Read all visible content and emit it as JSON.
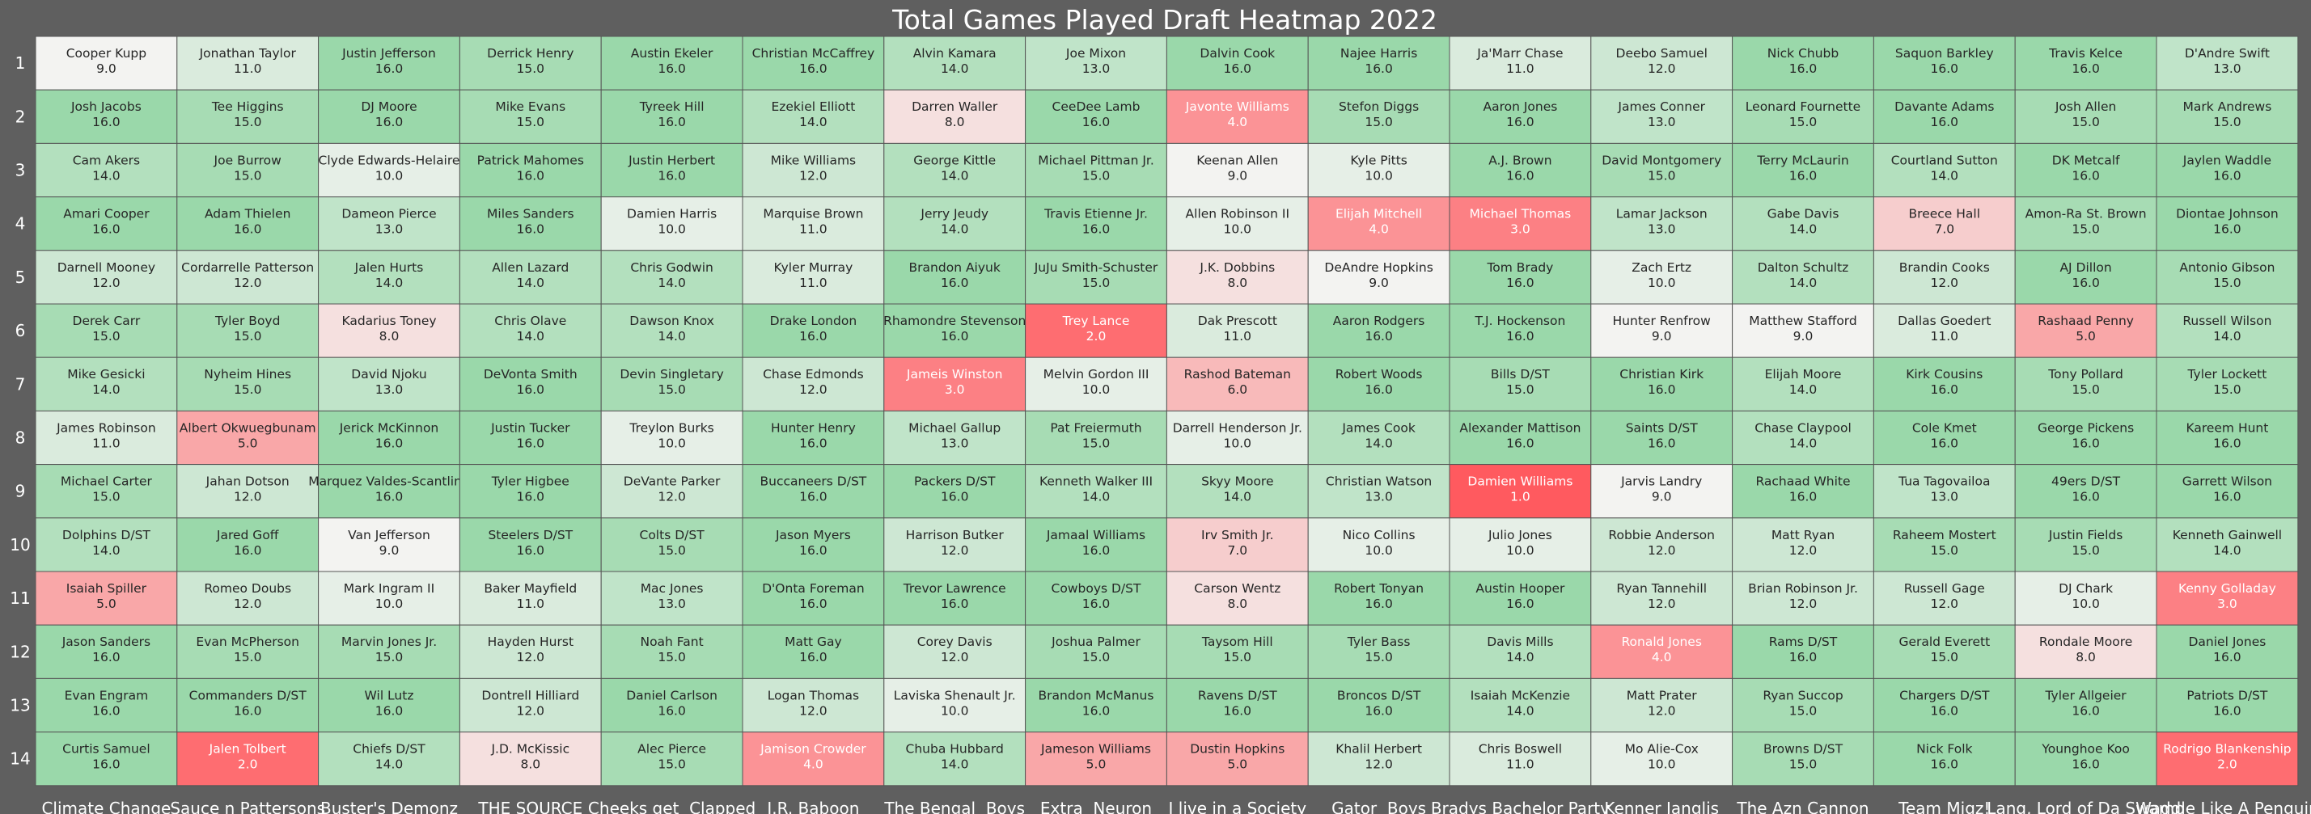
{
  "chart_data": {
    "type": "heatmap",
    "title": "Total Games Played Draft Heatmap 2022",
    "rows": [
      "1",
      "2",
      "3",
      "4",
      "5",
      "6",
      "7",
      "8",
      "9",
      "10",
      "11",
      "12",
      "13",
      "14"
    ],
    "columns": [
      "Climate Change",
      "Sauce n Pattersons",
      "Buster's Demonz",
      "THE SOURCE",
      "Cheeks get  Clapped",
      "I.R. Baboon",
      "The Bengal  Boys",
      "Extra  Neuron",
      "I live in a Society",
      "Gator  Boys",
      "Bradys Bachelor Party",
      "Kenner Janglis",
      "The Azn Cannon",
      "Team Migz!",
      "Lang, Lord of Da Swamp",
      "Waddle Like A Penguin"
    ],
    "vmin": 1,
    "vmax": 17,
    "colormap": {
      "low": "#ff5a5f",
      "mid": "#f3f3f1",
      "high": "#8dd4a0"
    },
    "cells": [
      [
        {
          "player": "Cooper Kupp",
          "value": 9.0
        },
        {
          "player": "Jonathan Taylor",
          "value": 11.0
        },
        {
          "player": "Justin Jefferson",
          "value": 16.0
        },
        {
          "player": "Derrick Henry",
          "value": 15.0
        },
        {
          "player": "Austin Ekeler",
          "value": 16.0
        },
        {
          "player": "Christian McCaffrey",
          "value": 16.0
        },
        {
          "player": "Alvin Kamara",
          "value": 14.0
        },
        {
          "player": "Joe Mixon",
          "value": 13.0
        },
        {
          "player": "Dalvin Cook",
          "value": 16.0
        },
        {
          "player": "Najee Harris",
          "value": 16.0
        },
        {
          "player": "Ja'Marr Chase",
          "value": 11.0
        },
        {
          "player": "Deebo Samuel",
          "value": 12.0
        },
        {
          "player": "Nick Chubb",
          "value": 16.0
        },
        {
          "player": "Saquon Barkley",
          "value": 16.0
        },
        {
          "player": "Travis Kelce",
          "value": 16.0
        },
        {
          "player": "D'Andre Swift",
          "value": 13.0
        }
      ],
      [
        {
          "player": "Josh Jacobs",
          "value": 16.0
        },
        {
          "player": "Tee Higgins",
          "value": 15.0
        },
        {
          "player": "DJ Moore",
          "value": 16.0
        },
        {
          "player": "Mike Evans",
          "value": 15.0
        },
        {
          "player": "Tyreek Hill",
          "value": 16.0
        },
        {
          "player": "Ezekiel Elliott",
          "value": 14.0
        },
        {
          "player": "Darren Waller",
          "value": 8.0
        },
        {
          "player": "CeeDee Lamb",
          "value": 16.0
        },
        {
          "player": "Javonte Williams",
          "value": 4.0
        },
        {
          "player": "Stefon Diggs",
          "value": 15.0
        },
        {
          "player": "Aaron Jones",
          "value": 16.0
        },
        {
          "player": "James Conner",
          "value": 13.0
        },
        {
          "player": "Leonard Fournette",
          "value": 15.0
        },
        {
          "player": "Davante Adams",
          "value": 16.0
        },
        {
          "player": "Josh Allen",
          "value": 15.0
        },
        {
          "player": "Mark Andrews",
          "value": 15.0
        }
      ],
      [
        {
          "player": "Cam Akers",
          "value": 14.0
        },
        {
          "player": "Joe Burrow",
          "value": 15.0
        },
        {
          "player": "Clyde Edwards-Helaire",
          "value": 10.0
        },
        {
          "player": "Patrick Mahomes",
          "value": 16.0
        },
        {
          "player": "Justin Herbert",
          "value": 16.0
        },
        {
          "player": "Mike Williams",
          "value": 12.0
        },
        {
          "player": "George Kittle",
          "value": 14.0
        },
        {
          "player": "Michael Pittman Jr.",
          "value": 15.0
        },
        {
          "player": "Keenan Allen",
          "value": 9.0
        },
        {
          "player": "Kyle Pitts",
          "value": 10.0
        },
        {
          "player": "A.J. Brown",
          "value": 16.0
        },
        {
          "player": "David Montgomery",
          "value": 15.0
        },
        {
          "player": "Terry McLaurin",
          "value": 16.0
        },
        {
          "player": "Courtland Sutton",
          "value": 14.0
        },
        {
          "player": "DK Metcalf",
          "value": 16.0
        },
        {
          "player": "Jaylen Waddle",
          "value": 16.0
        }
      ],
      [
        {
          "player": "Amari Cooper",
          "value": 16.0
        },
        {
          "player": "Adam Thielen",
          "value": 16.0
        },
        {
          "player": "Dameon Pierce",
          "value": 13.0
        },
        {
          "player": "Miles Sanders",
          "value": 16.0
        },
        {
          "player": "Damien Harris",
          "value": 10.0
        },
        {
          "player": "Marquise Brown",
          "value": 11.0
        },
        {
          "player": "Jerry Jeudy",
          "value": 14.0
        },
        {
          "player": "Travis Etienne Jr.",
          "value": 16.0
        },
        {
          "player": "Allen Robinson II",
          "value": 10.0
        },
        {
          "player": "Elijah Mitchell",
          "value": 4.0
        },
        {
          "player": "Michael Thomas",
          "value": 3.0
        },
        {
          "player": "Lamar Jackson",
          "value": 13.0
        },
        {
          "player": "Gabe Davis",
          "value": 14.0
        },
        {
          "player": "Breece Hall",
          "value": 7.0
        },
        {
          "player": "Amon-Ra St. Brown",
          "value": 15.0
        },
        {
          "player": "Diontae Johnson",
          "value": 16.0
        }
      ],
      [
        {
          "player": "Darnell Mooney",
          "value": 12.0
        },
        {
          "player": "Cordarrelle Patterson",
          "value": 12.0
        },
        {
          "player": "Jalen Hurts",
          "value": 14.0
        },
        {
          "player": "Allen Lazard",
          "value": 14.0
        },
        {
          "player": "Chris Godwin",
          "value": 14.0
        },
        {
          "player": "Kyler Murray",
          "value": 11.0
        },
        {
          "player": "Brandon Aiyuk",
          "value": 16.0
        },
        {
          "player": "JuJu Smith-Schuster",
          "value": 15.0
        },
        {
          "player": "J.K. Dobbins",
          "value": 8.0
        },
        {
          "player": "DeAndre Hopkins",
          "value": 9.0
        },
        {
          "player": "Tom Brady",
          "value": 16.0
        },
        {
          "player": "Zach Ertz",
          "value": 10.0
        },
        {
          "player": "Dalton Schultz",
          "value": 14.0
        },
        {
          "player": "Brandin Cooks",
          "value": 12.0
        },
        {
          "player": "AJ Dillon",
          "value": 16.0
        },
        {
          "player": "Antonio Gibson",
          "value": 15.0
        }
      ],
      [
        {
          "player": "Derek Carr",
          "value": 15.0
        },
        {
          "player": "Tyler Boyd",
          "value": 15.0
        },
        {
          "player": "Kadarius Toney",
          "value": 8.0
        },
        {
          "player": "Chris Olave",
          "value": 14.0
        },
        {
          "player": "Dawson Knox",
          "value": 14.0
        },
        {
          "player": "Drake London",
          "value": 16.0
        },
        {
          "player": "Rhamondre Stevenson",
          "value": 16.0
        },
        {
          "player": "Trey Lance",
          "value": 2.0
        },
        {
          "player": "Dak Prescott",
          "value": 11.0
        },
        {
          "player": "Aaron Rodgers",
          "value": 16.0
        },
        {
          "player": "T.J. Hockenson",
          "value": 16.0
        },
        {
          "player": "Hunter Renfrow",
          "value": 9.0
        },
        {
          "player": "Matthew Stafford",
          "value": 9.0
        },
        {
          "player": "Dallas Goedert",
          "value": 11.0
        },
        {
          "player": "Rashaad Penny",
          "value": 5.0
        },
        {
          "player": "Russell Wilson",
          "value": 14.0
        }
      ],
      [
        {
          "player": "Mike Gesicki",
          "value": 14.0
        },
        {
          "player": "Nyheim Hines",
          "value": 15.0
        },
        {
          "player": "David Njoku",
          "value": 13.0
        },
        {
          "player": "DeVonta Smith",
          "value": 16.0
        },
        {
          "player": "Devin Singletary",
          "value": 15.0
        },
        {
          "player": "Chase Edmonds",
          "value": 12.0
        },
        {
          "player": "Jameis Winston",
          "value": 3.0
        },
        {
          "player": "Melvin Gordon III",
          "value": 10.0
        },
        {
          "player": "Rashod Bateman",
          "value": 6.0
        },
        {
          "player": "Robert Woods",
          "value": 16.0
        },
        {
          "player": "Bills D/ST",
          "value": 15.0
        },
        {
          "player": "Christian Kirk",
          "value": 16.0
        },
        {
          "player": "Elijah Moore",
          "value": 14.0
        },
        {
          "player": "Kirk Cousins",
          "value": 16.0
        },
        {
          "player": "Tony Pollard",
          "value": 15.0
        },
        {
          "player": "Tyler Lockett",
          "value": 15.0
        }
      ],
      [
        {
          "player": "James Robinson",
          "value": 11.0
        },
        {
          "player": "Albert Okwuegbunam",
          "value": 5.0
        },
        {
          "player": "Jerick McKinnon",
          "value": 16.0
        },
        {
          "player": "Justin Tucker",
          "value": 16.0
        },
        {
          "player": "Treylon Burks",
          "value": 10.0
        },
        {
          "player": "Hunter Henry",
          "value": 16.0
        },
        {
          "player": "Michael Gallup",
          "value": 13.0
        },
        {
          "player": "Pat Freiermuth",
          "value": 15.0
        },
        {
          "player": "Darrell Henderson Jr.",
          "value": 10.0
        },
        {
          "player": "James Cook",
          "value": 14.0
        },
        {
          "player": "Alexander Mattison",
          "value": 16.0
        },
        {
          "player": "Saints D/ST",
          "value": 16.0
        },
        {
          "player": "Chase Claypool",
          "value": 14.0
        },
        {
          "player": "Cole Kmet",
          "value": 16.0
        },
        {
          "player": "George Pickens",
          "value": 16.0
        },
        {
          "player": "Kareem Hunt",
          "value": 16.0
        }
      ],
      [
        {
          "player": "Michael Carter",
          "value": 15.0
        },
        {
          "player": "Jahan Dotson",
          "value": 12.0
        },
        {
          "player": "Marquez Valdes-Scantling",
          "value": 16.0
        },
        {
          "player": "Tyler Higbee",
          "value": 16.0
        },
        {
          "player": "DeVante Parker",
          "value": 12.0
        },
        {
          "player": "Buccaneers D/ST",
          "value": 16.0
        },
        {
          "player": "Packers D/ST",
          "value": 16.0
        },
        {
          "player": "Kenneth Walker III",
          "value": 14.0
        },
        {
          "player": "Skyy Moore",
          "value": 14.0
        },
        {
          "player": "Christian Watson",
          "value": 13.0
        },
        {
          "player": "Damien Williams",
          "value": 1.0
        },
        {
          "player": "Jarvis Landry",
          "value": 9.0
        },
        {
          "player": "Rachaad White",
          "value": 16.0
        },
        {
          "player": "Tua Tagovailoa",
          "value": 13.0
        },
        {
          "player": "49ers D/ST",
          "value": 16.0
        },
        {
          "player": "Garrett Wilson",
          "value": 16.0
        }
      ],
      [
        {
          "player": "Dolphins D/ST",
          "value": 14.0
        },
        {
          "player": "Jared Goff",
          "value": 16.0
        },
        {
          "player": "Van Jefferson",
          "value": 9.0
        },
        {
          "player": "Steelers D/ST",
          "value": 16.0
        },
        {
          "player": "Colts D/ST",
          "value": 15.0
        },
        {
          "player": "Jason Myers",
          "value": 16.0
        },
        {
          "player": "Harrison Butker",
          "value": 12.0
        },
        {
          "player": "Jamaal Williams",
          "value": 16.0
        },
        {
          "player": "Irv Smith Jr.",
          "value": 7.0
        },
        {
          "player": "Nico Collins",
          "value": 10.0
        },
        {
          "player": "Julio Jones",
          "value": 10.0
        },
        {
          "player": "Robbie Anderson",
          "value": 12.0
        },
        {
          "player": "Matt Ryan",
          "value": 12.0
        },
        {
          "player": "Raheem Mostert",
          "value": 15.0
        },
        {
          "player": "Justin Fields",
          "value": 15.0
        },
        {
          "player": "Kenneth Gainwell",
          "value": 14.0
        }
      ],
      [
        {
          "player": "Isaiah Spiller",
          "value": 5.0
        },
        {
          "player": "Romeo Doubs",
          "value": 12.0
        },
        {
          "player": "Mark Ingram II",
          "value": 10.0
        },
        {
          "player": "Baker Mayfield",
          "value": 11.0
        },
        {
          "player": "Mac Jones",
          "value": 13.0
        },
        {
          "player": "D'Onta Foreman",
          "value": 16.0
        },
        {
          "player": "Trevor Lawrence",
          "value": 16.0
        },
        {
          "player": "Cowboys D/ST",
          "value": 16.0
        },
        {
          "player": "Carson Wentz",
          "value": 8.0
        },
        {
          "player": "Robert Tonyan",
          "value": 16.0
        },
        {
          "player": "Austin Hooper",
          "value": 16.0
        },
        {
          "player": "Ryan Tannehill",
          "value": 12.0
        },
        {
          "player": "Brian Robinson Jr.",
          "value": 12.0
        },
        {
          "player": "Russell Gage",
          "value": 12.0
        },
        {
          "player": "DJ Chark",
          "value": 10.0
        },
        {
          "player": "Kenny Golladay",
          "value": 3.0
        }
      ],
      [
        {
          "player": "Jason Sanders",
          "value": 16.0
        },
        {
          "player": "Evan McPherson",
          "value": 15.0
        },
        {
          "player": "Marvin Jones Jr.",
          "value": 15.0
        },
        {
          "player": "Hayden Hurst",
          "value": 12.0
        },
        {
          "player": "Noah Fant",
          "value": 15.0
        },
        {
          "player": "Matt Gay",
          "value": 16.0
        },
        {
          "player": "Corey Davis",
          "value": 12.0
        },
        {
          "player": "Joshua Palmer",
          "value": 15.0
        },
        {
          "player": "Taysom Hill",
          "value": 15.0
        },
        {
          "player": "Tyler Bass",
          "value": 15.0
        },
        {
          "player": "Davis Mills",
          "value": 14.0
        },
        {
          "player": "Ronald Jones",
          "value": 4.0
        },
        {
          "player": "Rams D/ST",
          "value": 16.0
        },
        {
          "player": "Gerald Everett",
          "value": 15.0
        },
        {
          "player": "Rondale Moore",
          "value": 8.0
        },
        {
          "player": "Daniel Jones",
          "value": 16.0
        }
      ],
      [
        {
          "player": "Evan Engram",
          "value": 16.0
        },
        {
          "player": "Commanders D/ST",
          "value": 16.0
        },
        {
          "player": "Wil Lutz",
          "value": 16.0
        },
        {
          "player": "Dontrell Hilliard",
          "value": 12.0
        },
        {
          "player": "Daniel Carlson",
          "value": 16.0
        },
        {
          "player": "Logan Thomas",
          "value": 12.0
        },
        {
          "player": "Laviska Shenault Jr.",
          "value": 10.0
        },
        {
          "player": "Brandon McManus",
          "value": 16.0
        },
        {
          "player": "Ravens D/ST",
          "value": 16.0
        },
        {
          "player": "Broncos D/ST",
          "value": 16.0
        },
        {
          "player": "Isaiah McKenzie",
          "value": 14.0
        },
        {
          "player": "Matt Prater",
          "value": 12.0
        },
        {
          "player": "Ryan Succop",
          "value": 15.0
        },
        {
          "player": "Chargers D/ST",
          "value": 16.0
        },
        {
          "player": "Tyler Allgeier",
          "value": 16.0
        },
        {
          "player": "Patriots D/ST",
          "value": 16.0
        }
      ],
      [
        {
          "player": "Curtis Samuel",
          "value": 16.0
        },
        {
          "player": "Jalen Tolbert",
          "value": 2.0
        },
        {
          "player": "Chiefs D/ST",
          "value": 14.0
        },
        {
          "player": "J.D. McKissic",
          "value": 8.0
        },
        {
          "player": "Alec Pierce",
          "value": 15.0
        },
        {
          "player": "Jamison Crowder",
          "value": 4.0
        },
        {
          "player": "Chuba Hubbard",
          "value": 14.0
        },
        {
          "player": "Jameson Williams",
          "value": 5.0
        },
        {
          "player": "Dustin Hopkins",
          "value": 5.0
        },
        {
          "player": "Khalil Herbert",
          "value": 12.0
        },
        {
          "player": "Chris Boswell",
          "value": 11.0
        },
        {
          "player": "Mo Alie-Cox",
          "value": 10.0
        },
        {
          "player": "Browns D/ST",
          "value": 15.0
        },
        {
          "player": "Nick Folk",
          "value": 16.0
        },
        {
          "player": "Younghoe Koo",
          "value": 16.0
        },
        {
          "player": "Rodrigo Blankenship",
          "value": 2.0
        }
      ]
    ]
  }
}
